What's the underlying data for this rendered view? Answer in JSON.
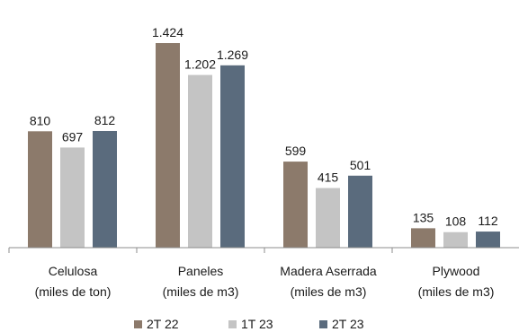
{
  "chart_data": {
    "type": "bar",
    "title": "",
    "xlabel": "",
    "ylabel": "",
    "ylim": [
      0,
      1600
    ],
    "grid": false,
    "legend_position": "bottom",
    "categories": [
      {
        "line1": "Celulosa",
        "line2": "(miles de ton)"
      },
      {
        "line1": "Paneles",
        "line2": "(miles de m3)"
      },
      {
        "line1": "Madera Aserrada",
        "line2": "(miles de m3)"
      },
      {
        "line1": "Plywood",
        "line2": "(miles de m3)"
      }
    ],
    "series": [
      {
        "name": "2T 22",
        "color": "#8c7a6b",
        "values": [
          810,
          1424,
          599,
          135
        ],
        "labels": [
          "810",
          "1.424",
          "599",
          "135"
        ]
      },
      {
        "name": "1T 23",
        "color": "#c4c4c4",
        "values": [
          697,
          1202,
          415,
          108
        ],
        "labels": [
          "697",
          "1.202",
          "415",
          "108"
        ]
      },
      {
        "name": "2T 23",
        "color": "#5a6b7d",
        "values": [
          812,
          1269,
          501,
          112
        ],
        "labels": [
          "812",
          "1.269",
          "501",
          "112"
        ]
      }
    ]
  }
}
